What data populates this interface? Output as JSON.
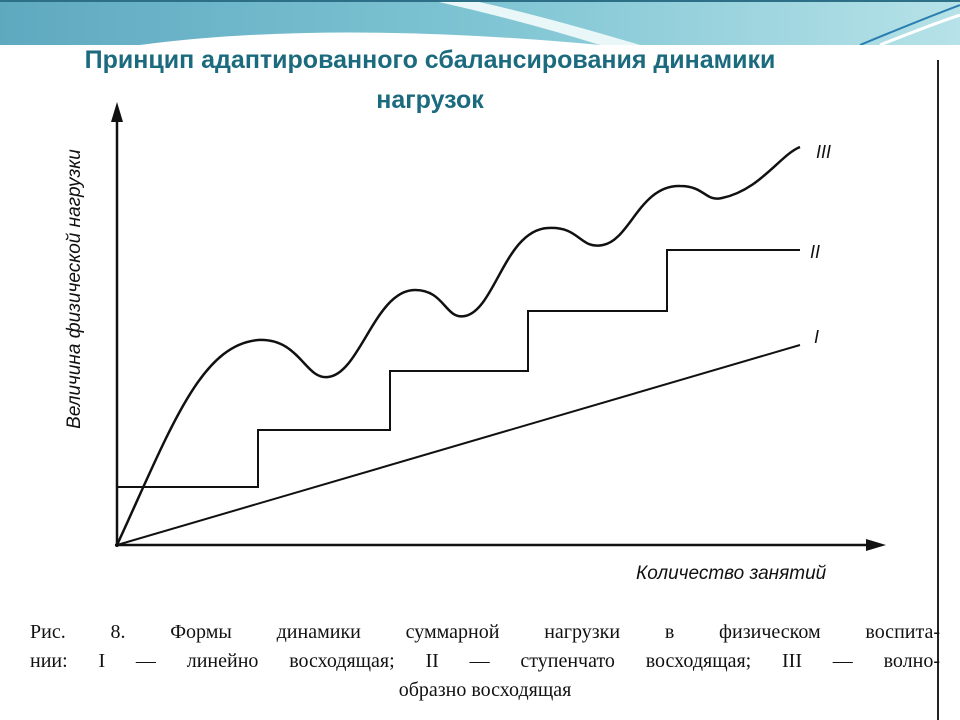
{
  "slide": {
    "title_line1": "Принцип адаптированного сбалансирования динамики",
    "title_line2": "нагрузок",
    "accent_color": "#1b6a7e"
  },
  "figure": {
    "y_axis_label": "Величина физической нагрузки",
    "x_axis_label": "Количество занятий",
    "series_labels": {
      "linear": "I",
      "stepped": "II",
      "wavy": "III"
    },
    "caption_line1": "Рис. 8. Формы динамики суммарной нагрузки в физическом воспита-",
    "caption_line2": "нии: I — линейно восходящая; II — ступенчато восходящая; III — волно-",
    "caption_line3": "образно восходящая"
  }
}
